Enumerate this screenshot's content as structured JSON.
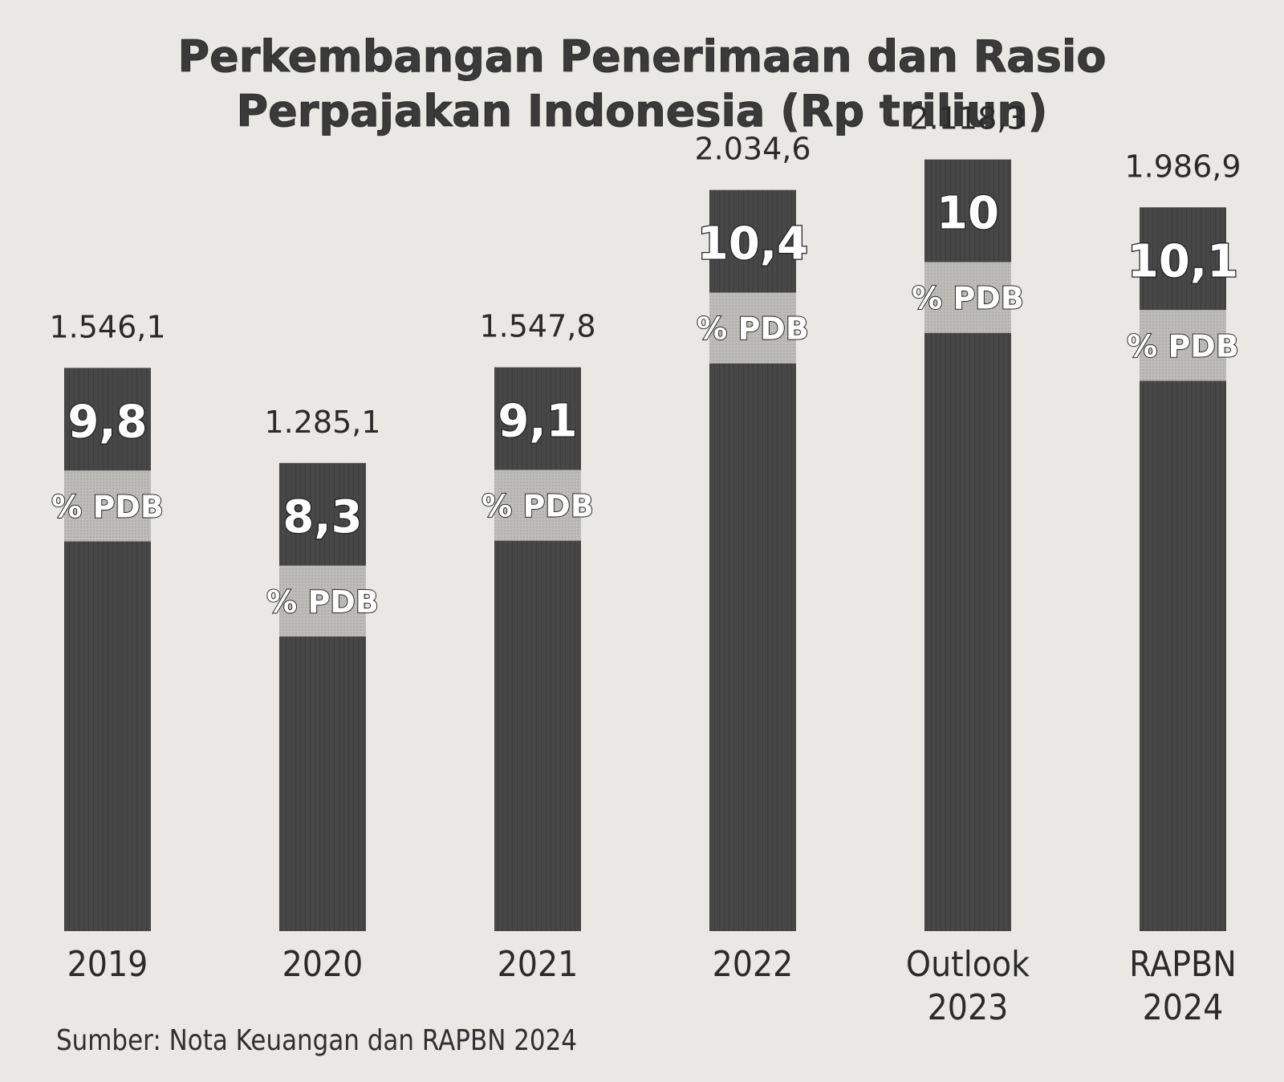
{
  "chart_data": {
    "type": "bar",
    "title": "Perkembangan Penerimaan dan Rasio Perpajakan Indonesia (Rp triliun)",
    "title_lines": [
      "Perkembangan Penerimaan dan Rasio",
      "Perpajakan Indonesia (Rp triliun)"
    ],
    "categories": [
      "2019",
      "2020",
      "2021",
      "2022",
      "Outlook 2023",
      "RAPBN 2024"
    ],
    "category_lines": [
      [
        "2019"
      ],
      [
        "2020"
      ],
      [
        "2021"
      ],
      [
        "2022"
      ],
      [
        "Outlook",
        "2023"
      ],
      [
        "RAPBN",
        "2024"
      ]
    ],
    "series": [
      {
        "values": [
          1546.1,
          1285.1,
          1547.8,
          2034.6,
          2118.3,
          1986.9
        ],
        "value_labels": [
          "1.546,1",
          "1.285,1",
          "1.547,8",
          "2.034,6",
          "2.118,3",
          "1.986,9"
        ]
      }
    ],
    "ratio_labels": [
      "9,8",
      "8,3",
      "9,1",
      "10,4",
      "10",
      "10,1"
    ],
    "ratio_unit_label": "% PDB",
    "ylim": [
      0,
      2200
    ],
    "grid": false,
    "legend": "none",
    "colors": {
      "bar": "#474747",
      "ratio_band": "#bdbcb8",
      "label": "#2a2a2a",
      "background": "#e9e8e4"
    }
  },
  "source": "Sumber: Nota Keuangan dan RAPBN 2024"
}
